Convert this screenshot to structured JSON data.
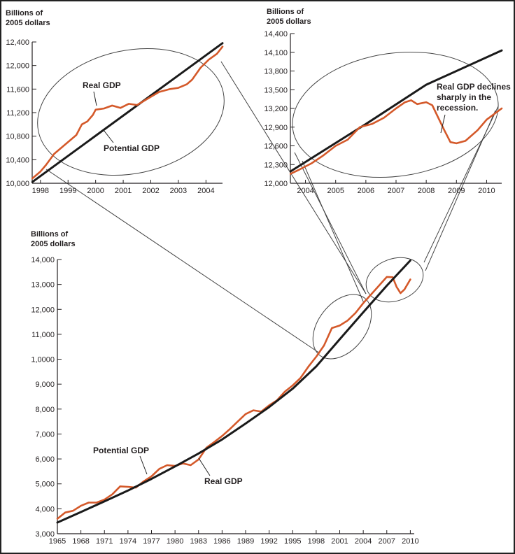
{
  "colors": {
    "real": "#d4592a",
    "potential": "#1a1a1a",
    "axis": "#231f20",
    "ellipse": "#444444"
  },
  "chart_data": [
    {
      "id": "main",
      "type": "line",
      "ylabel_line1": "Billions of",
      "ylabel_line2": "2005 dollars",
      "ylim": [
        3000,
        14000
      ],
      "yticks": [
        3000,
        4000,
        5000,
        6000,
        7000,
        8000,
        9000,
        10000,
        11000,
        12000,
        13000,
        14000
      ],
      "ytick_labels": [
        "3,000",
        "4,000",
        "5,000",
        "6,000",
        "7,000",
        "8,000",
        "9,000",
        "1,0000",
        "11,000",
        "12,000",
        "13,000",
        "14,000"
      ],
      "xlim": [
        1965,
        2010.5
      ],
      "xticks": [
        1965,
        1968,
        1971,
        1974,
        1977,
        1980,
        1983,
        1986,
        1989,
        1992,
        1995,
        1998,
        2001,
        2004,
        2007,
        2010
      ],
      "series": [
        {
          "name": "Potential GDP",
          "x": [
            1965,
            1968,
            1971,
            1974,
            1977,
            1980,
            1983,
            1986,
            1989,
            1992,
            1995,
            1998,
            2001,
            2004,
            2007,
            2010
          ],
          "y": [
            3450,
            3870,
            4300,
            4730,
            5200,
            5700,
            6220,
            6780,
            7420,
            8080,
            8820,
            9710,
            10800,
            11880,
            12950,
            13960
          ]
        },
        {
          "name": "Real GDP",
          "x": [
            1965,
            1966,
            1967,
            1968,
            1969,
            1970,
            1971,
            1972,
            1973,
            1974,
            1975,
            1976,
            1977,
            1978,
            1979,
            1980,
            1981,
            1982,
            1983,
            1984,
            1985,
            1986,
            1987,
            1988,
            1989,
            1990,
            1991,
            1992,
            1993,
            1994,
            1995,
            1996,
            1997,
            1998,
            1999,
            2000,
            2001,
            2002,
            2003,
            2004,
            2005,
            2006,
            2007,
            2007.75,
            2008.25,
            2008.75,
            2009.25,
            2010
          ],
          "y": [
            3600,
            3850,
            3920,
            4120,
            4250,
            4250,
            4370,
            4580,
            4900,
            4880,
            4850,
            5100,
            5300,
            5600,
            5750,
            5720,
            5820,
            5750,
            5980,
            6450,
            6680,
            6920,
            7200,
            7500,
            7800,
            7950,
            7900,
            8150,
            8350,
            8700,
            8950,
            9250,
            9700,
            10100,
            10550,
            11250,
            11350,
            11550,
            11850,
            12250,
            12600,
            12950,
            13300,
            13290,
            12900,
            12650,
            12800,
            13200
          ]
        }
      ],
      "annotations": {
        "potential": "Potential GDP",
        "real": "Real GDP"
      }
    },
    {
      "id": "inset_left",
      "type": "line",
      "ylabel_line1": "Billions of",
      "ylabel_line2": "2005 dollars",
      "ylim": [
        10000,
        12400
      ],
      "yticks": [
        10000,
        10400,
        10800,
        11200,
        11600,
        12000,
        12400
      ],
      "ytick_labels": [
        "10,000",
        "10,400",
        "10,800",
        "11,200",
        "11,600",
        "12,000",
        "12,400"
      ],
      "xlim": [
        1997.7,
        2004.6
      ],
      "xticks": [
        1998,
        1999,
        2000,
        2001,
        2002,
        2003,
        2004
      ],
      "series": [
        {
          "name": "Potential GDP",
          "x": [
            1997.7,
            2004.6
          ],
          "y": [
            10020,
            12380
          ]
        },
        {
          "name": "Real GDP",
          "x": [
            1997.7,
            1998.0,
            1998.2,
            1998.5,
            1998.8,
            1999.0,
            1999.3,
            1999.5,
            1999.7,
            1999.9,
            2000.0,
            2000.3,
            2000.6,
            2000.9,
            2001.2,
            2001.5,
            2001.9,
            2002.3,
            2002.7,
            2003.0,
            2003.3,
            2003.5,
            2003.8,
            2004.1,
            2004.4,
            2004.6
          ],
          "y": [
            10080,
            10200,
            10310,
            10500,
            10620,
            10700,
            10820,
            11000,
            11050,
            11160,
            11250,
            11270,
            11320,
            11280,
            11350,
            11330,
            11440,
            11550,
            11600,
            11620,
            11680,
            11760,
            11960,
            12100,
            12200,
            12320
          ]
        }
      ],
      "annotations": {
        "real": "Real GDP",
        "potential": "Potential GDP"
      }
    },
    {
      "id": "inset_right",
      "type": "line",
      "ylabel_line1": "Billions of",
      "ylabel_line2": "2005 dollars",
      "ylim": [
        12000,
        14400
      ],
      "yticks": [
        12000,
        12300,
        12600,
        12900,
        13200,
        13500,
        13800,
        14100,
        14400
      ],
      "ytick_labels": [
        "12,000",
        "12,300",
        "12,600",
        "12,900",
        "13,200",
        "13,500",
        "13,800",
        "14,100",
        "14,400"
      ],
      "xlim": [
        2003.5,
        2010.5
      ],
      "xticks": [
        2004,
        2005,
        2006,
        2007,
        2008,
        2009,
        2010
      ],
      "series": [
        {
          "name": "Potential GDP",
          "x": [
            2003.5,
            2006.0,
            2008.0,
            2010.5
          ],
          "y": [
            12190,
            12950,
            13580,
            14130
          ]
        },
        {
          "name": "Real GDP",
          "x": [
            2003.5,
            2003.8,
            2004.2,
            2004.6,
            2005.0,
            2005.4,
            2005.8,
            2006.2,
            2006.6,
            2007.0,
            2007.3,
            2007.5,
            2007.7,
            2008.0,
            2008.2,
            2008.4,
            2008.6,
            2008.8,
            2009.0,
            2009.3,
            2009.7,
            2010.0,
            2010.5
          ],
          "y": [
            12150,
            12220,
            12320,
            12450,
            12600,
            12700,
            12900,
            12950,
            13050,
            13200,
            13300,
            13330,
            13270,
            13300,
            13250,
            13050,
            12850,
            12660,
            12640,
            12680,
            12850,
            13020,
            13200
          ]
        }
      ],
      "annotations": {
        "decline_line1": "Real GDP declines",
        "decline_line2": "sharply in the",
        "decline_line3": "recession."
      }
    }
  ]
}
